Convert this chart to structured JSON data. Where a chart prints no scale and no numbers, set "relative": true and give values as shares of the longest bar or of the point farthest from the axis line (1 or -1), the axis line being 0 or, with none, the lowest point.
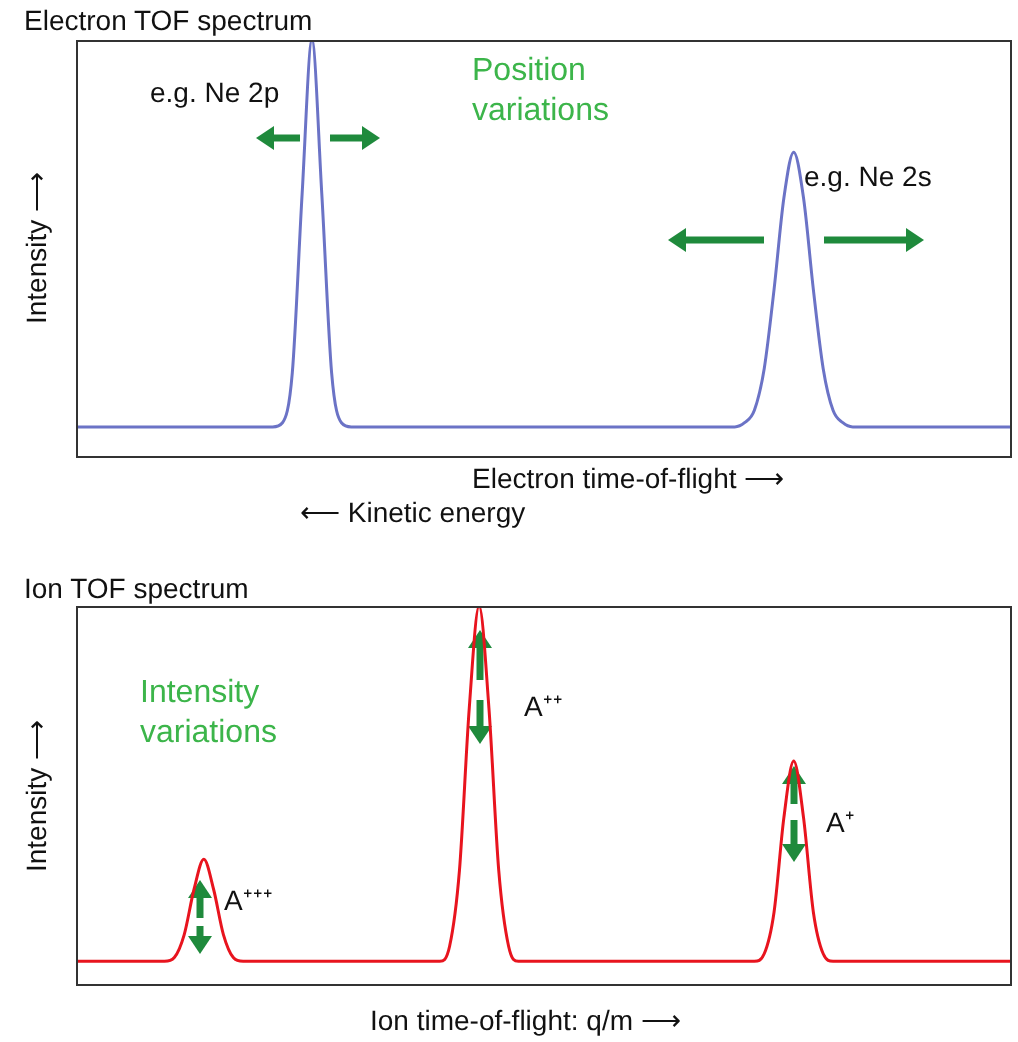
{
  "chart_data": [
    {
      "type": "line",
      "title": "Electron TOF spectrum",
      "xlabel": "Electron time-of-flight ⟶",
      "ylabel": "Intensity ⟶",
      "relative": true,
      "marker": "none",
      "categories": [
        null,
        null,
        null,
        null,
        null,
        null,
        null,
        null,
        null,
        null,
        null,
        null,
        null,
        null,
        null,
        null,
        null,
        null,
        null,
        null,
        null,
        null,
        null,
        null,
        null,
        null,
        null,
        null,
        null,
        null,
        null,
        null,
        null,
        null,
        null,
        null,
        null,
        null,
        null,
        null,
        null,
        null,
        null,
        null,
        null,
        null,
        null,
        null,
        null,
        null,
        null,
        null,
        null,
        null,
        null,
        null,
        null,
        null,
        null,
        null,
        null,
        null,
        null,
        null,
        null,
        null,
        null,
        null,
        null,
        null,
        null,
        null,
        null,
        null,
        null,
        null,
        null,
        null,
        null,
        null,
        null,
        null,
        null,
        null,
        null,
        null,
        null,
        null,
        null,
        null,
        null,
        null,
        null,
        null,
        null,
        null
      ],
      "series": [
        {
          "color": "#6b73c6",
          "values": [
            0.07,
            0.07,
            0.07,
            0.07,
            0.07,
            0.07,
            0.07,
            0.07,
            0.07,
            0.07,
            0.07,
            0.07,
            0.07,
            0.07,
            0.07,
            0.07,
            0.07,
            0.07,
            0.07,
            0.07,
            0.07,
            0.08,
            0.2,
            0.63,
            1,
            0.63,
            0.2,
            0.08,
            0.07,
            0.07,
            0.07,
            0.07,
            0.07,
            0.07,
            0.07,
            0.07,
            0.07,
            0.07,
            0.07,
            0.07,
            0.07,
            0.07,
            0.07,
            0.07,
            0.07,
            0.07,
            0.07,
            0.07,
            0.07,
            0.07,
            0.07,
            0.07,
            0.07,
            0.07,
            0.07,
            0.07,
            0.07,
            0.07,
            0.07,
            0.07,
            0.07,
            0.07,
            0.07,
            0.07,
            0.07,
            0.07,
            0.07,
            0.07,
            0.08,
            0.11,
            0.21,
            0.4,
            0.62,
            0.73,
            0.62,
            0.4,
            0.21,
            0.11,
            0.08,
            0.07,
            0.07,
            0.07,
            0.07,
            0.07,
            0.07,
            0.07,
            0.07,
            0.07,
            0.07,
            0.07,
            0.07,
            0.07,
            0.07,
            0.07,
            0.07,
            0.07
          ]
        }
      ],
      "annotations": [
        "e.g. Ne 2p",
        "Position variations",
        "e.g. Ne 2s",
        "⟵ Kinetic energy"
      ]
    },
    {
      "type": "line",
      "title": "Ion TOF spectrum",
      "xlabel": "Ion time-of-flight: q/m ⟶",
      "ylabel": "Intensity ⟶",
      "relative": true,
      "marker": "none",
      "categories": [
        null,
        null,
        null,
        null,
        null,
        null,
        null,
        null,
        null,
        null,
        null,
        null,
        null,
        null,
        null,
        null,
        null,
        null,
        null,
        null,
        null,
        null,
        null,
        null,
        null,
        null,
        null,
        null,
        null,
        null,
        null,
        null,
        null,
        null,
        null,
        null,
        null,
        null,
        null,
        null,
        null,
        null,
        null,
        null,
        null,
        null,
        null,
        null,
        null,
        null,
        null,
        null,
        null,
        null,
        null,
        null,
        null,
        null,
        null,
        null,
        null,
        null,
        null,
        null,
        null,
        null,
        null,
        null,
        null,
        null,
        null,
        null,
        null,
        null,
        null,
        null,
        null,
        null,
        null,
        null,
        null,
        null,
        null,
        null,
        null,
        null,
        null,
        null,
        null,
        null,
        null,
        null,
        null,
        null,
        null,
        null
      ],
      "series": [
        {
          "color": "#e8141e",
          "values": [
            0.06,
            0.06,
            0.06,
            0.06,
            0.06,
            0.06,
            0.06,
            0.06,
            0.06,
            0.06,
            0.07,
            0.13,
            0.25,
            0.33,
            0.25,
            0.13,
            0.07,
            0.06,
            0.06,
            0.06,
            0.06,
            0.06,
            0.06,
            0.06,
            0.06,
            0.06,
            0.06,
            0.06,
            0.06,
            0.06,
            0.06,
            0.06,
            0.06,
            0.06,
            0.06,
            0.06,
            0.06,
            0.06,
            0.1,
            0.3,
            0.73,
            1,
            0.73,
            0.3,
            0.1,
            0.06,
            0.06,
            0.06,
            0.06,
            0.06,
            0.06,
            0.06,
            0.06,
            0.06,
            0.06,
            0.06,
            0.06,
            0.06,
            0.06,
            0.06,
            0.06,
            0.06,
            0.06,
            0.06,
            0.06,
            0.06,
            0.06,
            0.06,
            0.06,
            0.06,
            0.08,
            0.19,
            0.44,
            0.59,
            0.44,
            0.19,
            0.08,
            0.06,
            0.06,
            0.06,
            0.06,
            0.06,
            0.06,
            0.06,
            0.06,
            0.06,
            0.06,
            0.06,
            0.06,
            0.06,
            0.06,
            0.06,
            0.06,
            0.06,
            0.06,
            0.06
          ]
        }
      ],
      "annotations": [
        "Intensity variations",
        "A⁺⁺⁺",
        "A⁺⁺",
        "A⁺"
      ]
    }
  ]
}
